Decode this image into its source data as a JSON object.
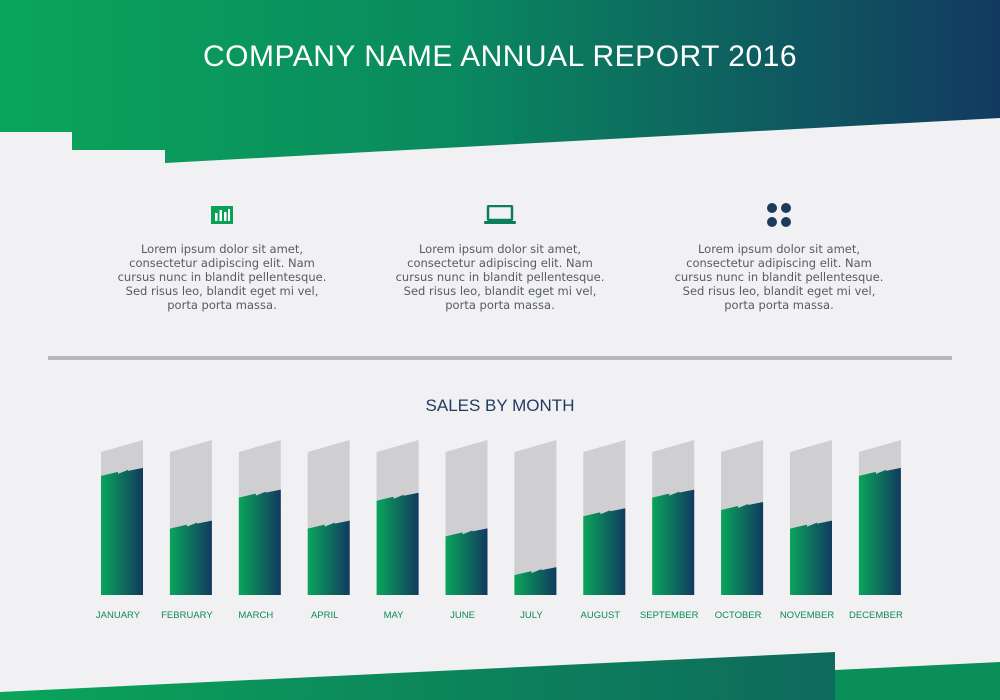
{
  "header": {
    "title": "COMPANY NAME ANNUAL REPORT 2016"
  },
  "colors": {
    "green": "#0aa157",
    "navy": "#113a60",
    "panel": "#f1f1f3",
    "placeholder": "#cfcfd1"
  },
  "features": [
    {
      "icon": "bar-chart-icon",
      "text": "Lorem ipsum dolor sit amet,\nconsectetur adipiscing elit. Nam\ncursus nunc in blandit pellentesque.\nSed risus leo, blandit eget mi vel,\nporta porta massa."
    },
    {
      "icon": "laptop-icon",
      "text": "Lorem ipsum dolor sit amet,\nconsectetur adipiscing elit. Nam\ncursus nunc in blandit pellentesque.\nSed risus leo, blandit eget mi vel,\nporta porta massa."
    },
    {
      "icon": "four-dots-icon",
      "text": "Lorem ipsum dolor sit amet,\nconsectetur adipiscing elit. Nam\ncursus nunc in blandit pellentesque.\nSed risus leo, blandit eget mi vel,\nporta porta massa."
    }
  ],
  "chart_data": {
    "type": "bar",
    "title": "SALES BY MONTH",
    "categories": [
      "JANUARY",
      "FEBRUARY",
      "MARCH",
      "APRIL",
      "MAY",
      "JUNE",
      "JULY",
      "AUGUST",
      "SEPTEMBER",
      "OCTOBER",
      "NOVEMBER",
      "DECEMBER"
    ],
    "values": [
      82,
      48,
      68,
      48,
      66,
      43,
      18,
      56,
      68,
      60,
      48,
      82
    ],
    "ylim": [
      0,
      100
    ],
    "grid": false
  }
}
